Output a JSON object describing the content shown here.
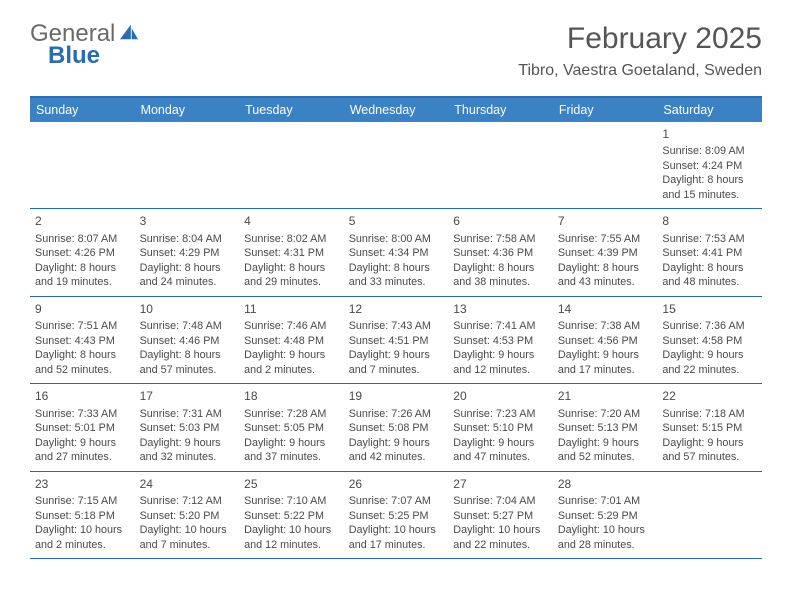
{
  "logo": {
    "word1": "General",
    "word2": "Blue"
  },
  "title": "February 2025",
  "location": "Tibro, Vaestra Goetaland, Sweden",
  "colors": {
    "header_bg": "#3b82c4",
    "border": "#2b6bb0",
    "text": "#4a4a4a",
    "logo_gray": "#6a6a6a",
    "logo_blue": "#2b6bb0",
    "background": "#ffffff"
  },
  "typography": {
    "title_fontsize": 30,
    "location_fontsize": 16,
    "dayname_fontsize": 12.5,
    "cell_fontsize": 10.8,
    "daynum_fontsize": 12
  },
  "layout": {
    "columns": 7,
    "cell_min_height": 86
  },
  "daynames": [
    "Sunday",
    "Monday",
    "Tuesday",
    "Wednesday",
    "Thursday",
    "Friday",
    "Saturday"
  ],
  "weeks": [
    [
      null,
      null,
      null,
      null,
      null,
      null,
      {
        "n": "1",
        "sunrise": "8:09 AM",
        "sunset": "4:24 PM",
        "daylight": "8 hours and 15 minutes."
      }
    ],
    [
      {
        "n": "2",
        "sunrise": "8:07 AM",
        "sunset": "4:26 PM",
        "daylight": "8 hours and 19 minutes."
      },
      {
        "n": "3",
        "sunrise": "8:04 AM",
        "sunset": "4:29 PM",
        "daylight": "8 hours and 24 minutes."
      },
      {
        "n": "4",
        "sunrise": "8:02 AM",
        "sunset": "4:31 PM",
        "daylight": "8 hours and 29 minutes."
      },
      {
        "n": "5",
        "sunrise": "8:00 AM",
        "sunset": "4:34 PM",
        "daylight": "8 hours and 33 minutes."
      },
      {
        "n": "6",
        "sunrise": "7:58 AM",
        "sunset": "4:36 PM",
        "daylight": "8 hours and 38 minutes."
      },
      {
        "n": "7",
        "sunrise": "7:55 AM",
        "sunset": "4:39 PM",
        "daylight": "8 hours and 43 minutes."
      },
      {
        "n": "8",
        "sunrise": "7:53 AM",
        "sunset": "4:41 PM",
        "daylight": "8 hours and 48 minutes."
      }
    ],
    [
      {
        "n": "9",
        "sunrise": "7:51 AM",
        "sunset": "4:43 PM",
        "daylight": "8 hours and 52 minutes."
      },
      {
        "n": "10",
        "sunrise": "7:48 AM",
        "sunset": "4:46 PM",
        "daylight": "8 hours and 57 minutes."
      },
      {
        "n": "11",
        "sunrise": "7:46 AM",
        "sunset": "4:48 PM",
        "daylight": "9 hours and 2 minutes."
      },
      {
        "n": "12",
        "sunrise": "7:43 AM",
        "sunset": "4:51 PM",
        "daylight": "9 hours and 7 minutes."
      },
      {
        "n": "13",
        "sunrise": "7:41 AM",
        "sunset": "4:53 PM",
        "daylight": "9 hours and 12 minutes."
      },
      {
        "n": "14",
        "sunrise": "7:38 AM",
        "sunset": "4:56 PM",
        "daylight": "9 hours and 17 minutes."
      },
      {
        "n": "15",
        "sunrise": "7:36 AM",
        "sunset": "4:58 PM",
        "daylight": "9 hours and 22 minutes."
      }
    ],
    [
      {
        "n": "16",
        "sunrise": "7:33 AM",
        "sunset": "5:01 PM",
        "daylight": "9 hours and 27 minutes."
      },
      {
        "n": "17",
        "sunrise": "7:31 AM",
        "sunset": "5:03 PM",
        "daylight": "9 hours and 32 minutes."
      },
      {
        "n": "18",
        "sunrise": "7:28 AM",
        "sunset": "5:05 PM",
        "daylight": "9 hours and 37 minutes."
      },
      {
        "n": "19",
        "sunrise": "7:26 AM",
        "sunset": "5:08 PM",
        "daylight": "9 hours and 42 minutes."
      },
      {
        "n": "20",
        "sunrise": "7:23 AM",
        "sunset": "5:10 PM",
        "daylight": "9 hours and 47 minutes."
      },
      {
        "n": "21",
        "sunrise": "7:20 AM",
        "sunset": "5:13 PM",
        "daylight": "9 hours and 52 minutes."
      },
      {
        "n": "22",
        "sunrise": "7:18 AM",
        "sunset": "5:15 PM",
        "daylight": "9 hours and 57 minutes."
      }
    ],
    [
      {
        "n": "23",
        "sunrise": "7:15 AM",
        "sunset": "5:18 PM",
        "daylight": "10 hours and 2 minutes."
      },
      {
        "n": "24",
        "sunrise": "7:12 AM",
        "sunset": "5:20 PM",
        "daylight": "10 hours and 7 minutes."
      },
      {
        "n": "25",
        "sunrise": "7:10 AM",
        "sunset": "5:22 PM",
        "daylight": "10 hours and 12 minutes."
      },
      {
        "n": "26",
        "sunrise": "7:07 AM",
        "sunset": "5:25 PM",
        "daylight": "10 hours and 17 minutes."
      },
      {
        "n": "27",
        "sunrise": "7:04 AM",
        "sunset": "5:27 PM",
        "daylight": "10 hours and 22 minutes."
      },
      {
        "n": "28",
        "sunrise": "7:01 AM",
        "sunset": "5:29 PM",
        "daylight": "10 hours and 28 minutes."
      },
      null
    ]
  ],
  "labels": {
    "sunrise": "Sunrise:",
    "sunset": "Sunset:",
    "daylight": "Daylight:"
  }
}
